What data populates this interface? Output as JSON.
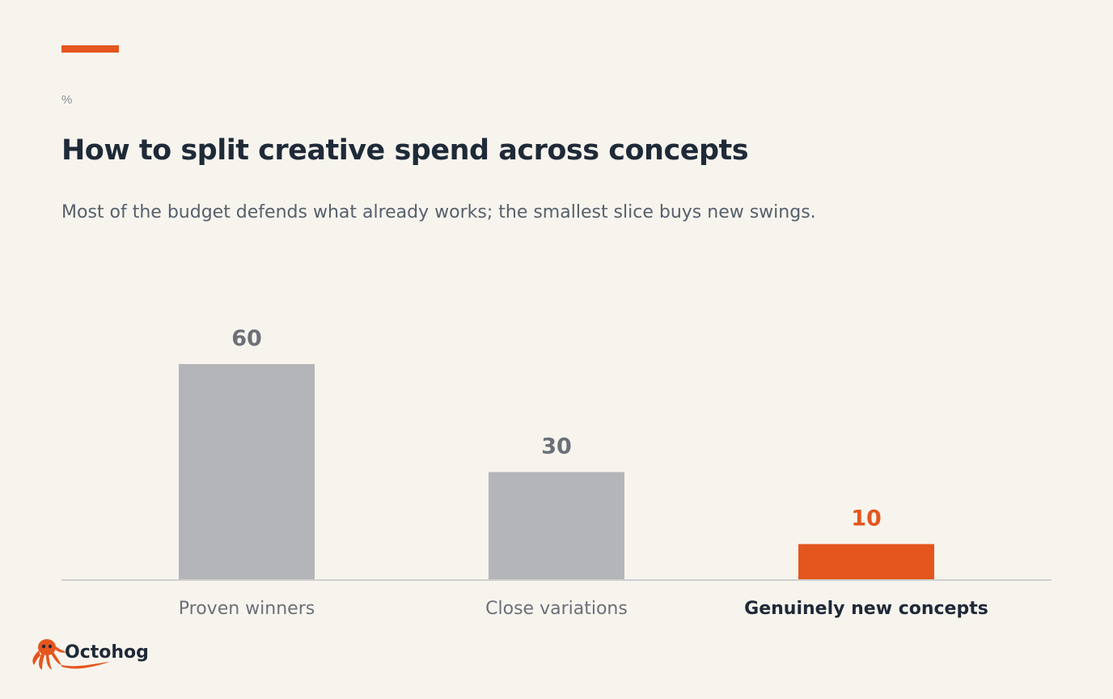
{
  "header": {
    "unit": "%",
    "title": "How to split creative spend across concepts",
    "subtitle": "Most of the budget defends what already works; the smallest slice buys new swings."
  },
  "colors": {
    "background": "#f7f4ee",
    "accent": "#e4561e",
    "bar_default": "#b4b5b8",
    "value_default": "#6b7078",
    "label_default": "#6b7078",
    "label_highlight": "#1f2a38",
    "axis": "#cfcfcf"
  },
  "chart_data": {
    "type": "bar",
    "categories": [
      "Proven winners",
      "Close variations",
      "Genuinely new concepts"
    ],
    "values": [
      60,
      30,
      10
    ],
    "highlight_index": 2,
    "ylim": [
      0,
      60
    ],
    "grid": false,
    "title": "How to split creative spend across concepts",
    "subtitle": "Most of the budget defends what already works; the smallest slice buys new swings.",
    "ylabel": "%"
  },
  "brand": {
    "name": "Octohog",
    "icon": "octopus-icon"
  }
}
